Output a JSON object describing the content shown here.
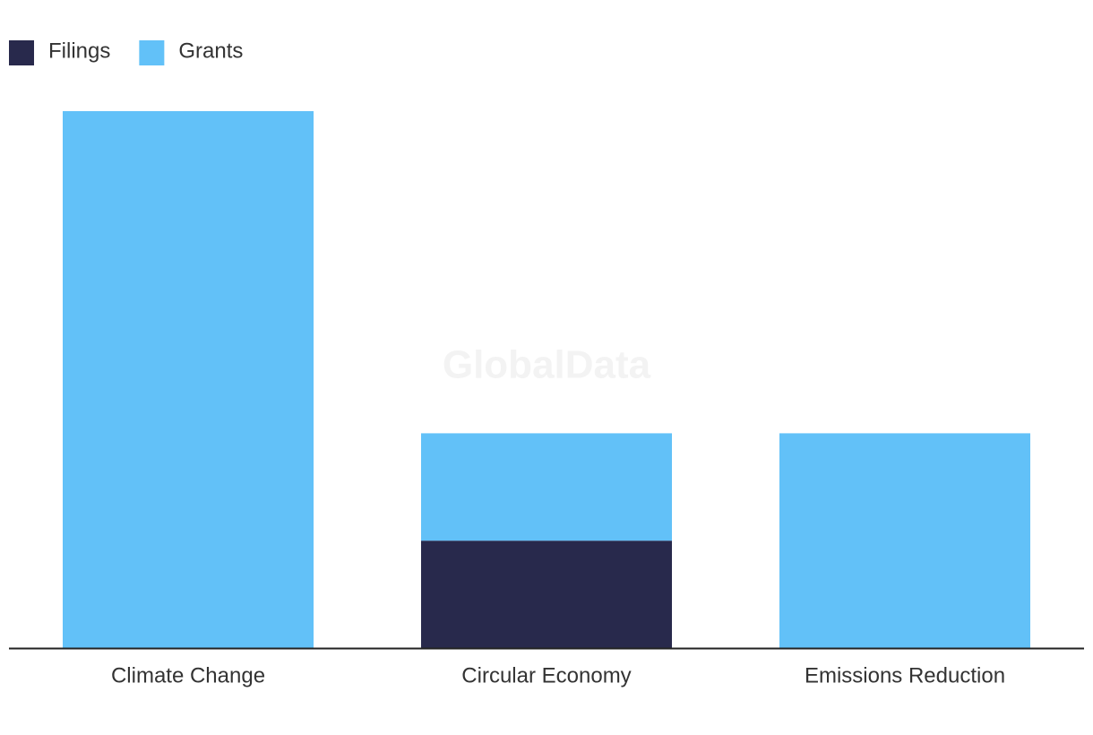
{
  "chart_data": {
    "type": "stacked-bar",
    "watermark": "GlobalData",
    "categories": [
      "Climate Change",
      "Circular Economy",
      "Emissions Reduction"
    ],
    "series": [
      {
        "name": "Filings",
        "color": "#28294c",
        "values": [
          0,
          1,
          0
        ]
      },
      {
        "name": "Grants",
        "color": "#62c1f8",
        "values": [
          5,
          1,
          2
        ]
      }
    ],
    "legend": "top-left"
  }
}
